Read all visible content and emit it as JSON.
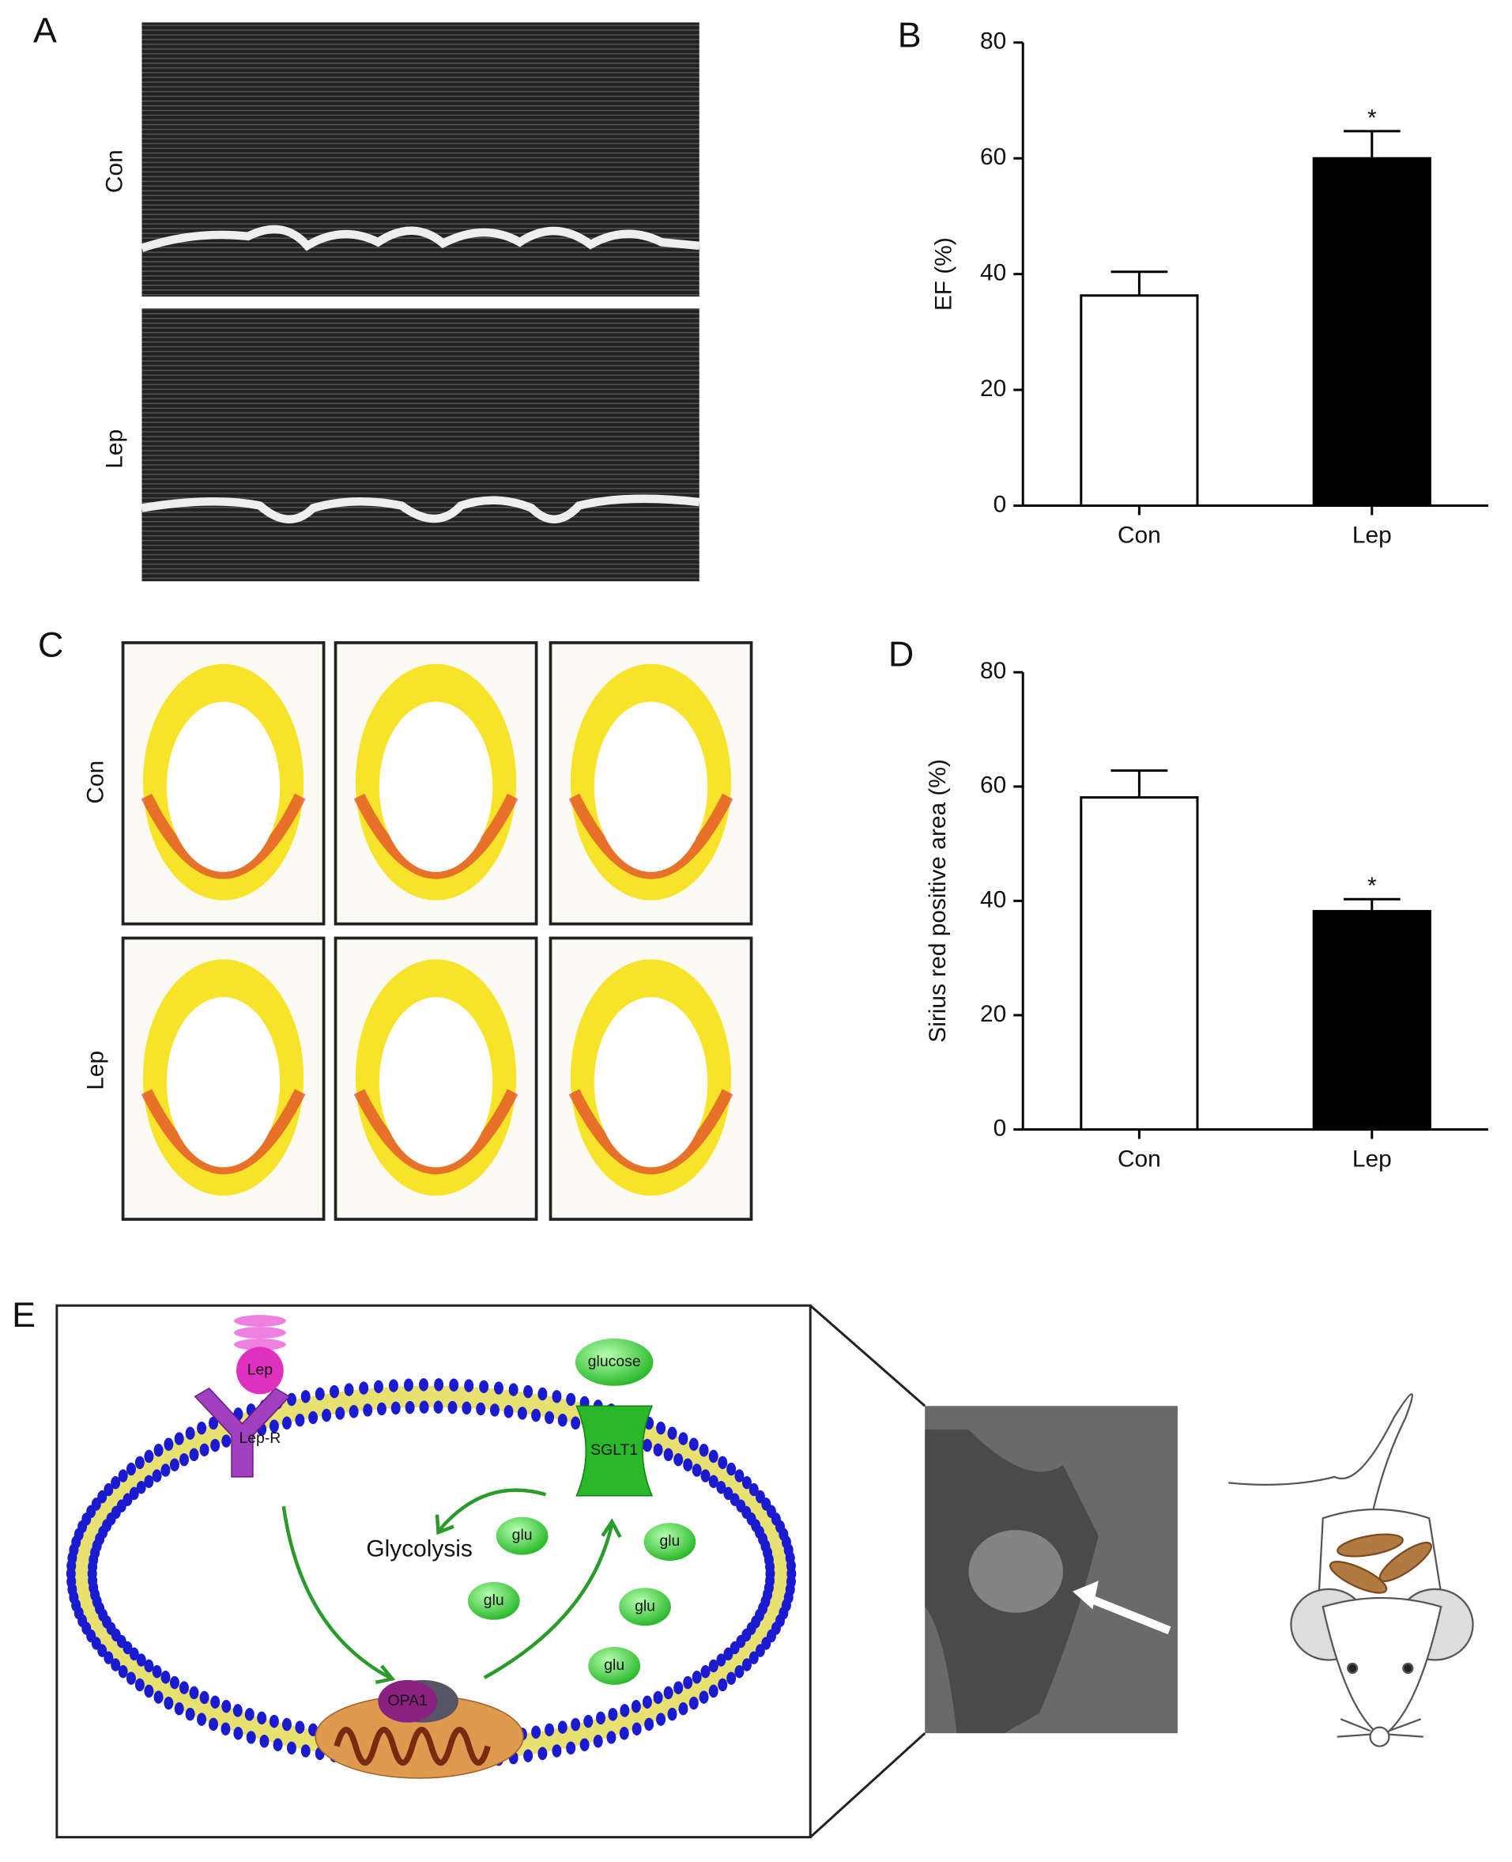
{
  "chart_data": [
    {
      "type": "bar",
      "ylabel": "EF (%)",
      "categories": [
        "Con",
        "Lep"
      ],
      "values": [
        36.3,
        60
      ],
      "errors": [
        4.1,
        4.7
      ],
      "colors": [
        "#ffffff",
        "#000000"
      ],
      "significance": [
        null,
        "*"
      ],
      "ylim": [
        0,
        80
      ],
      "yticks": [
        0,
        20,
        40,
        60,
        80
      ]
    },
    {
      "type": "bar",
      "ylabel": "Sirius red positive area (%)",
      "categories": [
        "Con",
        "Lep"
      ],
      "values": [
        58.1,
        38.2
      ],
      "errors": [
        4.7,
        2.1
      ],
      "colors": [
        "#ffffff",
        "#000000"
      ],
      "significance": [
        null,
        "*"
      ],
      "ylim": [
        0,
        80
      ],
      "yticks": [
        0,
        20,
        40,
        60,
        80
      ]
    }
  ],
  "figure": {
    "panel_labels": [
      "A",
      "B",
      "C",
      "D",
      "E"
    ],
    "echo_rows": [
      "Con",
      "Lep"
    ],
    "stain_rows": [
      "Con",
      "Lep"
    ],
    "diagram": {
      "ligand": "Lep",
      "receptor": "Lep-R",
      "glucose": "glucose",
      "transporter": "SGLT1",
      "pathway": "Glycolysis",
      "glu": [
        "glu",
        "glu",
        "glu",
        "glu",
        "glu"
      ],
      "mito_protein": "OPA1"
    }
  }
}
